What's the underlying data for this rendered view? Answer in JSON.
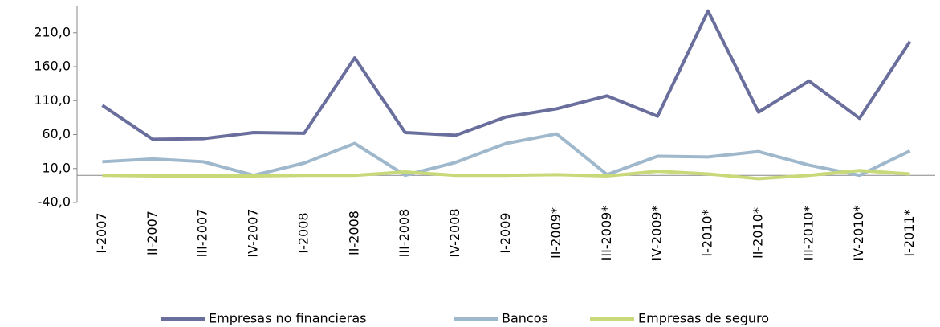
{
  "chart_data": {
    "type": "line",
    "categories": [
      "I-2007",
      "II-2007",
      "III-2007",
      "IV-2007",
      "I-2008",
      "II-2008",
      "III-2008",
      "IV-2008",
      "I-2009",
      "II-2009*",
      "III-2009*",
      "IV-2009*",
      "I-2010*",
      "II-2010*",
      "III-2010*",
      "IV-2010*",
      "I-2011*"
    ],
    "series": [
      {
        "name": "Empresas no financieras",
        "color": "#6a6e9c",
        "values": [
          103,
          53,
          54,
          63,
          62,
          173,
          63,
          59,
          86,
          98,
          117,
          87,
          242,
          93,
          139,
          84,
          197
        ]
      },
      {
        "name": "Bancos",
        "color": "#9fb8cc",
        "values": [
          20,
          24,
          20,
          0,
          18,
          47,
          0,
          19,
          47,
          61,
          1,
          28,
          27,
          35,
          15,
          0,
          36
        ]
      },
      {
        "name": "Empresas de seguro",
        "color": "#c8d97a",
        "values": [
          0,
          -1,
          -1,
          -1,
          0,
          0,
          5,
          0,
          0,
          1,
          -1,
          6,
          2,
          -5,
          0,
          7,
          2
        ]
      }
    ],
    "ylim": [
      -40,
      250
    ],
    "yticks": [
      {
        "value": -40,
        "label": "-40,0"
      },
      {
        "value": 10,
        "label": "10,0"
      },
      {
        "value": 60,
        "label": "60,0"
      },
      {
        "value": 110,
        "label": "110,0"
      },
      {
        "value": 160,
        "label": "160,0"
      },
      {
        "value": 210,
        "label": "210,0"
      }
    ],
    "grid": false,
    "legend": "bottom"
  }
}
